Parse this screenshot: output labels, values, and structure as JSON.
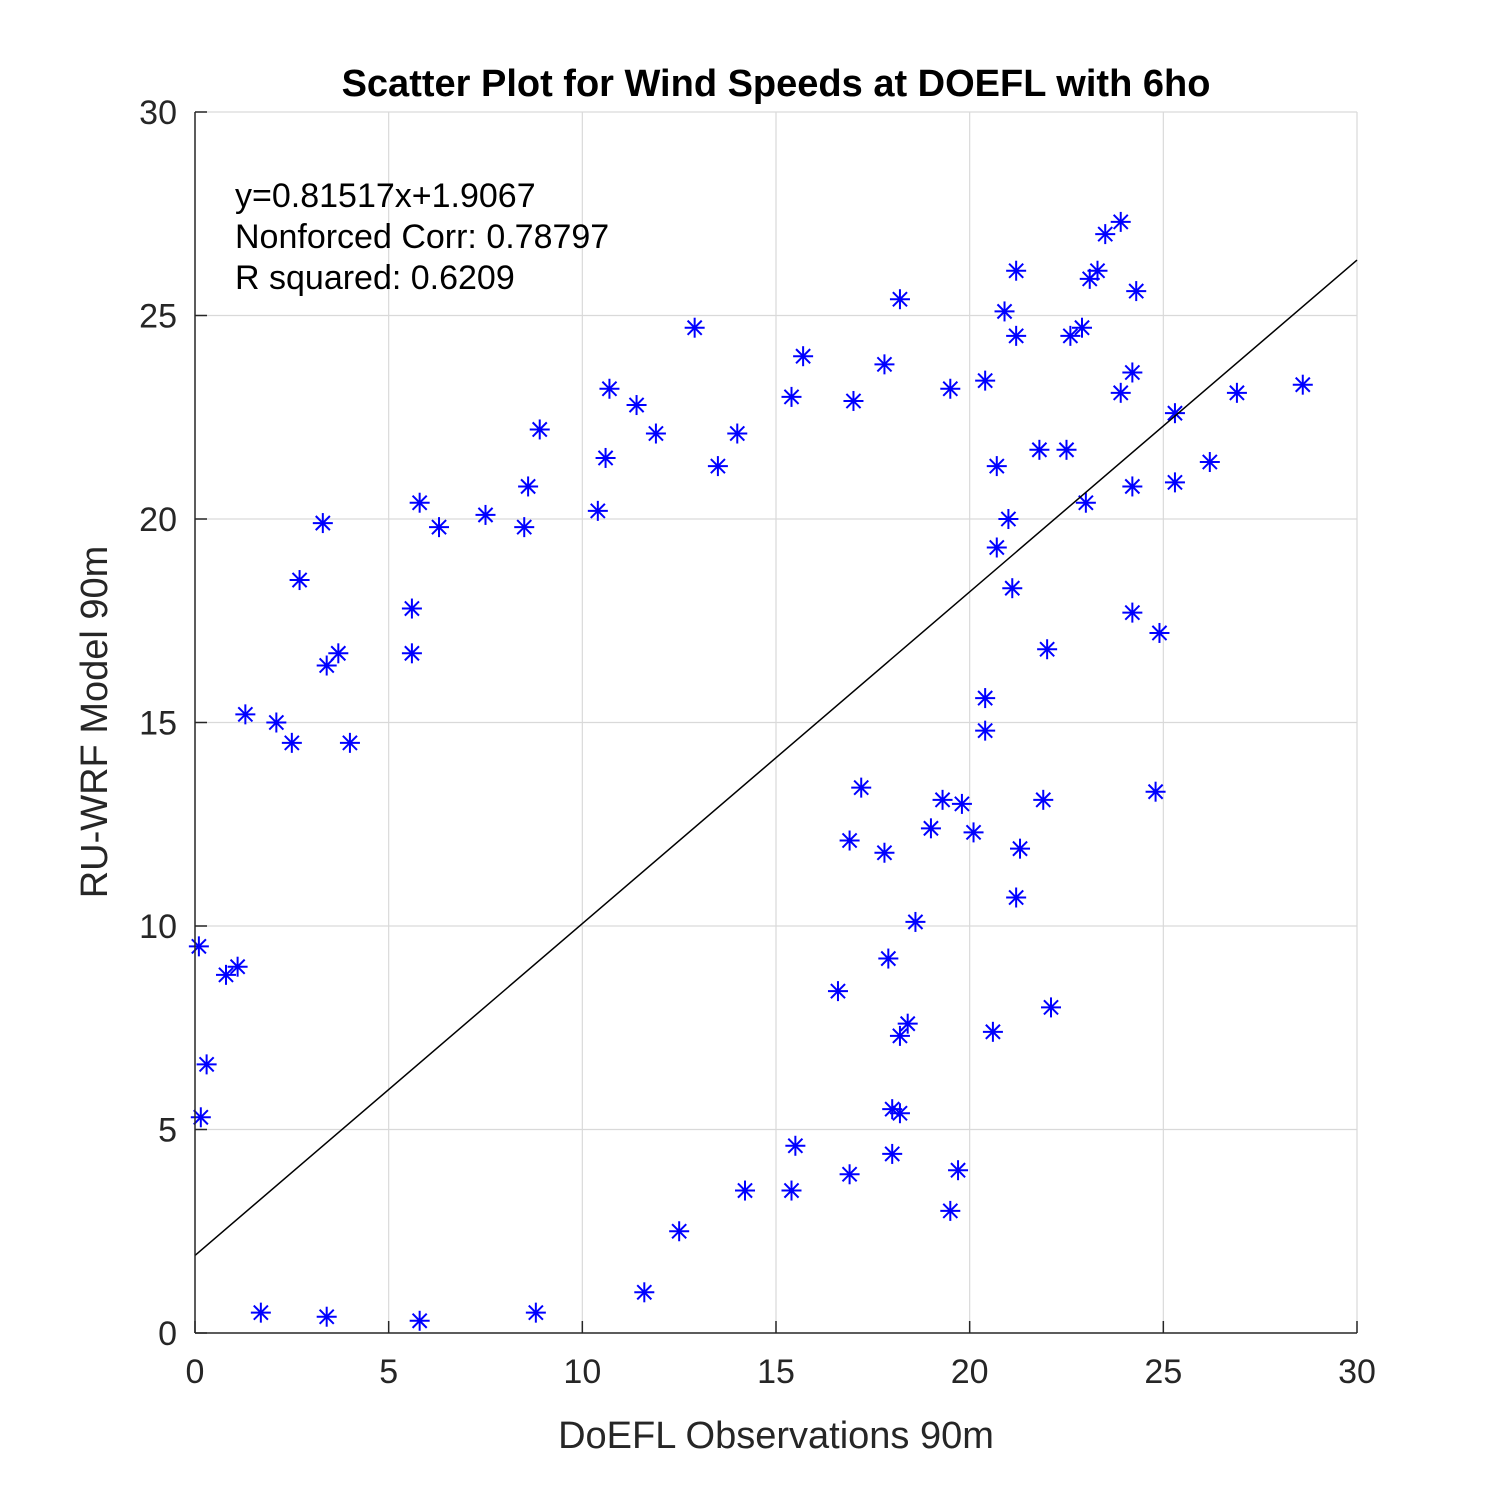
{
  "chart_data": {
    "type": "scatter",
    "title": "Scatter Plot for Wind Speeds at DOEFL with 6ho",
    "xlabel": "DoEFL Observations 90m",
    "ylabel": "RU-WRF Model 90m",
    "xlim": [
      0,
      30
    ],
    "ylim": [
      0,
      30
    ],
    "xticks": [
      0,
      5,
      10,
      15,
      20,
      25,
      30
    ],
    "yticks": [
      0,
      5,
      10,
      15,
      20,
      25,
      30
    ],
    "grid": true,
    "marker": "asterisk",
    "marker_color": "#0000ff",
    "fit_line": {
      "slope": 0.81517,
      "intercept": 1.9067,
      "color": "#000000"
    },
    "annotations": [
      "y=0.81517x+1.9067",
      "Nonforced Corr: 0.78797",
      "R squared: 0.6209"
    ],
    "series": [
      {
        "points": [
          [
            0.1,
            9.5
          ],
          [
            0.15,
            5.3
          ],
          [
            0.3,
            6.6
          ],
          [
            0.8,
            8.8
          ],
          [
            1.1,
            9.0
          ],
          [
            1.3,
            15.2
          ],
          [
            2.1,
            15.0
          ],
          [
            2.5,
            14.5
          ],
          [
            2.7,
            18.5
          ],
          [
            3.3,
            19.9
          ],
          [
            3.4,
            16.4
          ],
          [
            3.7,
            16.7
          ],
          [
            4.0,
            14.5
          ],
          [
            5.6,
            17.8
          ],
          [
            5.6,
            16.7
          ],
          [
            5.8,
            20.4
          ],
          [
            6.3,
            19.8
          ],
          [
            7.5,
            20.1
          ],
          [
            8.6,
            20.8
          ],
          [
            8.5,
            19.8
          ],
          [
            8.9,
            22.2
          ],
          [
            10.4,
            20.2
          ],
          [
            10.6,
            21.5
          ],
          [
            10.7,
            23.2
          ],
          [
            11.4,
            22.8
          ],
          [
            11.9,
            22.1
          ],
          [
            12.9,
            24.7
          ],
          [
            13.5,
            21.3
          ],
          [
            14.0,
            22.1
          ],
          [
            15.4,
            23.0
          ],
          [
            15.7,
            24.0
          ],
          [
            17.0,
            22.9
          ],
          [
            17.8,
            23.8
          ],
          [
            18.2,
            25.4
          ],
          [
            19.5,
            23.2
          ],
          [
            20.4,
            23.4
          ],
          [
            20.9,
            25.1
          ],
          [
            21.2,
            26.1
          ],
          [
            21.2,
            24.5
          ],
          [
            22.6,
            24.5
          ],
          [
            22.9,
            24.7
          ],
          [
            23.1,
            25.9
          ],
          [
            23.3,
            26.1
          ],
          [
            23.5,
            27.0
          ],
          [
            23.9,
            27.3
          ],
          [
            24.3,
            25.6
          ],
          [
            23.9,
            23.1
          ],
          [
            24.2,
            23.6
          ],
          [
            25.3,
            22.6
          ],
          [
            26.9,
            23.1
          ],
          [
            28.6,
            23.3
          ],
          [
            26.2,
            21.4
          ],
          [
            25.3,
            20.9
          ],
          [
            24.2,
            20.8
          ],
          [
            24.2,
            17.7
          ],
          [
            24.9,
            17.2
          ],
          [
            24.8,
            13.3
          ],
          [
            22.0,
            16.8
          ],
          [
            23.0,
            20.4
          ],
          [
            22.5,
            21.7
          ],
          [
            21.8,
            21.7
          ],
          [
            21.0,
            20.0
          ],
          [
            20.7,
            21.3
          ],
          [
            20.7,
            19.3
          ],
          [
            21.1,
            18.3
          ],
          [
            21.9,
            13.1
          ],
          [
            21.3,
            11.9
          ],
          [
            21.2,
            10.7
          ],
          [
            22.1,
            8.0
          ],
          [
            20.6,
            7.4
          ],
          [
            20.4,
            15.6
          ],
          [
            20.4,
            14.8
          ],
          [
            20.1,
            12.3
          ],
          [
            19.7,
            4.0
          ],
          [
            19.5,
            3.0
          ],
          [
            18.4,
            7.6
          ],
          [
            18.2,
            7.3
          ],
          [
            18.0,
            5.5
          ],
          [
            18.2,
            5.4
          ],
          [
            18.0,
            4.4
          ],
          [
            17.9,
            9.2
          ],
          [
            16.6,
            8.4
          ],
          [
            16.9,
            3.9
          ],
          [
            15.5,
            4.6
          ],
          [
            15.4,
            3.5
          ],
          [
            14.2,
            3.5
          ],
          [
            12.5,
            2.5
          ],
          [
            11.6,
            1.0
          ],
          [
            8.8,
            0.5
          ],
          [
            5.8,
            0.3
          ],
          [
            3.4,
            0.4
          ],
          [
            1.7,
            0.5
          ],
          [
            18.6,
            10.1
          ],
          [
            19.0,
            12.4
          ],
          [
            19.3,
            13.1
          ],
          [
            19.8,
            13.0
          ],
          [
            17.2,
            13.4
          ],
          [
            17.8,
            11.8
          ],
          [
            16.9,
            12.1
          ]
        ]
      }
    ]
  }
}
